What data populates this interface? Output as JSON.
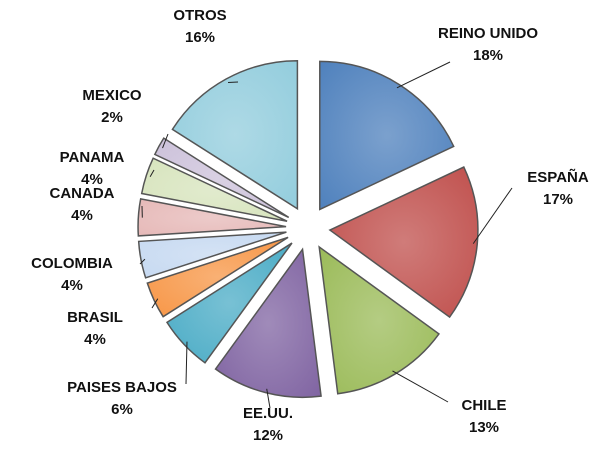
{
  "chart_data": {
    "type": "pie",
    "categories": [
      "REINO UNIDO",
      "ESPAÑA",
      "CHILE",
      "EE.UU.",
      "PAISES BAJOS",
      "BRASIL",
      "COLOMBIA",
      "CANADA",
      "PANAMA",
      "MEXICO",
      "OTROS"
    ],
    "values": [
      18,
      17,
      13,
      12,
      6,
      4,
      4,
      4,
      4,
      2,
      16
    ],
    "value_labels": [
      "18%",
      "17%",
      "13%",
      "12%",
      "6%",
      "4%",
      "4%",
      "4%",
      "4%",
      "2%",
      "16%"
    ],
    "colors": [
      "#4f81bd",
      "#c0504d",
      "#9bbb59",
      "#8064a2",
      "#4bacc6",
      "#f79646",
      "#c6d9f1",
      "#e6b9b8",
      "#d7e4bd",
      "#ccc1da",
      "#93cddd"
    ]
  }
}
